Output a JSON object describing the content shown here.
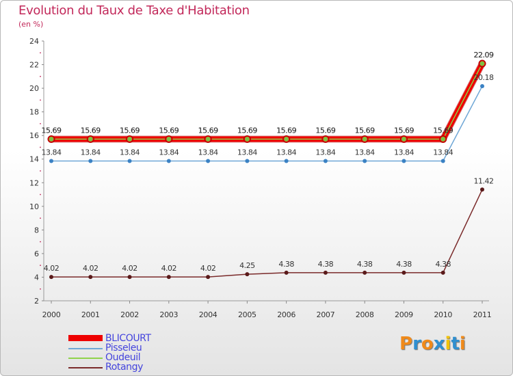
{
  "title": "Evolution du Taux de Taxe d'Habitation",
  "subtitle": "(en %)",
  "logo": {
    "text": "Proxiti",
    "letters": [
      "P",
      "r",
      "o",
      "x",
      "i",
      "t",
      "i"
    ],
    "colors": [
      "#f08a1a",
      "#2f8fd0",
      "#f08a1a",
      "#2f8fd0",
      "#f2c200",
      "#2f8fd0",
      "#f08a1a"
    ]
  },
  "legend": [
    {
      "label": "BLICOURT",
      "color": "#ee0000",
      "thick": true
    },
    {
      "label": "Pisseleu",
      "color": "#6fa7d6",
      "thick": false
    },
    {
      "label": "Oudeuil",
      "color": "#8fd34a",
      "thick": false
    },
    {
      "label": "Rotangy",
      "color": "#7a2a2a",
      "thick": false
    }
  ],
  "chart_data": {
    "type": "line",
    "title": "Evolution du Taux de Taxe d'Habitation",
    "ylabel": "(en %)",
    "xlabel": "",
    "x": [
      "2000",
      "2001",
      "2002",
      "2003",
      "2004",
      "2005",
      "2006",
      "2007",
      "2008",
      "2009",
      "2010",
      "2011"
    ],
    "ylim": [
      2,
      24
    ],
    "yticks": [
      2,
      4,
      6,
      8,
      10,
      12,
      14,
      16,
      18,
      20,
      22,
      24
    ],
    "grid": false,
    "series": [
      {
        "name": "BLICOURT",
        "color": "#ee0000",
        "marker": "#ee0000",
        "values": [
          15.69,
          15.69,
          15.69,
          15.69,
          15.69,
          15.69,
          15.69,
          15.69,
          15.69,
          15.69,
          15.69,
          22.09
        ],
        "labels": [
          "15.69",
          "15.69",
          "15.69",
          "15.69",
          "15.69",
          "15.69",
          "15.69",
          "15.69",
          "15.69",
          "15.69",
          "15.69",
          "22.09"
        ]
      },
      {
        "name": "Pisseleu",
        "color": "#6fa7d6",
        "marker": "#3b82c4",
        "values": [
          13.84,
          13.84,
          13.84,
          13.84,
          13.84,
          13.84,
          13.84,
          13.84,
          13.84,
          13.84,
          13.84,
          20.18
        ],
        "labels": [
          "13.84",
          "13.84",
          "13.84",
          "13.84",
          "13.84",
          "13.84",
          "13.84",
          "13.84",
          "13.84",
          "13.84",
          "13.84",
          "20.18"
        ]
      },
      {
        "name": "Oudeuil",
        "color": "#8fd34a",
        "marker": "#7cc142",
        "values": [
          15.69,
          15.69,
          15.69,
          15.69,
          15.69,
          15.69,
          15.69,
          15.69,
          15.69,
          15.69,
          15.69,
          22.09
        ],
        "labels": [
          "15.69",
          "15.69",
          "15.69",
          "15.69",
          "15.69",
          "15.69",
          "15.69",
          "15.69",
          "15.69",
          "15.69",
          "15.69",
          "22.09"
        ]
      },
      {
        "name": "Rotangy",
        "color": "#7a2a2a",
        "marker": "#5a1a1a",
        "values": [
          4.02,
          4.02,
          4.02,
          4.02,
          4.02,
          4.25,
          4.38,
          4.38,
          4.38,
          4.38,
          4.38,
          11.42
        ],
        "labels": [
          "4.02",
          "4.02",
          "4.02",
          "4.02",
          "4.02",
          "4.25",
          "4.38",
          "4.38",
          "4.38",
          "4.38",
          "4.38",
          "11.42"
        ]
      }
    ]
  }
}
